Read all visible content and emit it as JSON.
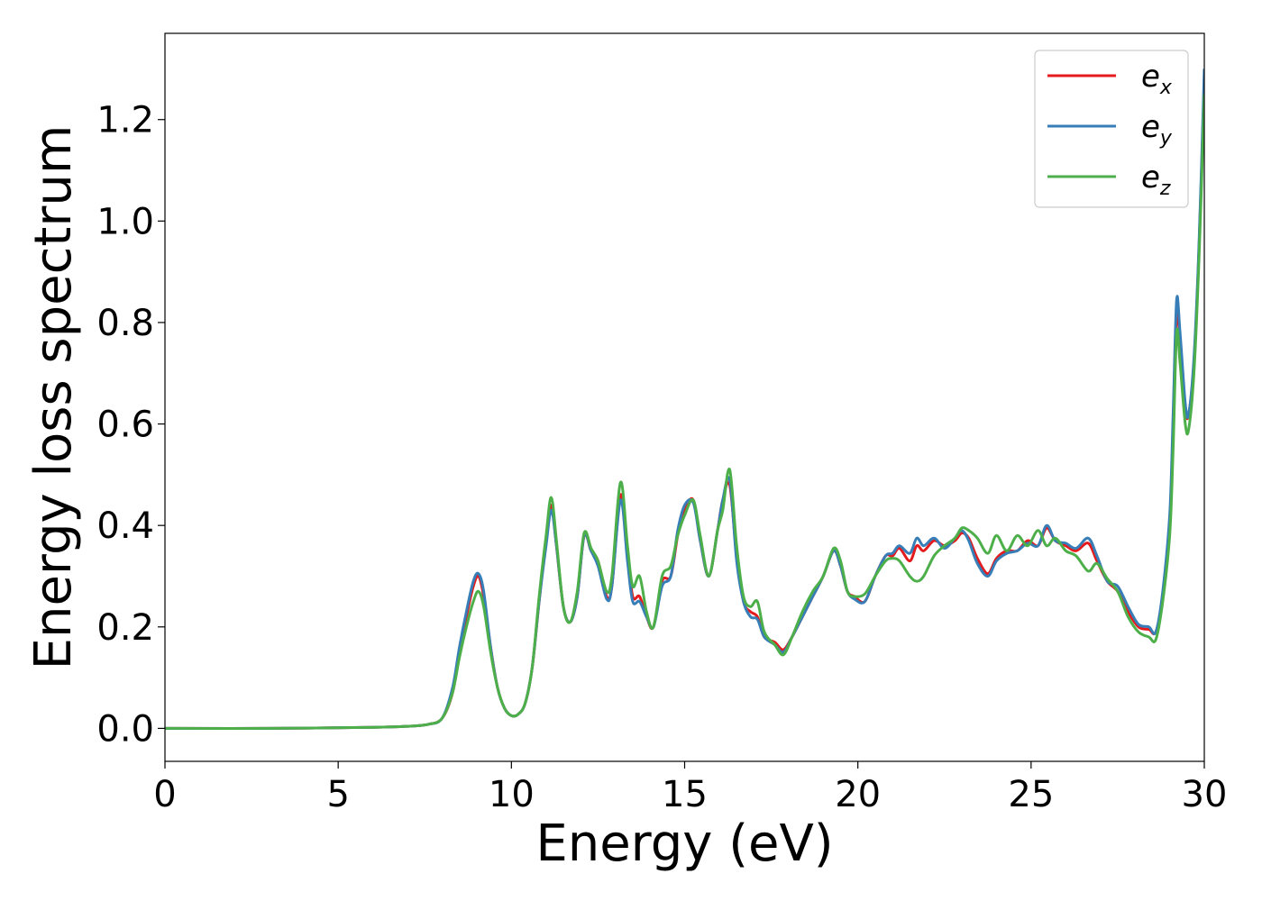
{
  "chart_data": {
    "type": "line",
    "xlabel": "Energy (eV)",
    "ylabel": "Energy loss spectrum",
    "xlim": [
      0,
      30
    ],
    "ylim": [
      -0.065,
      1.37
    ],
    "x_ticks": [
      0,
      5,
      10,
      15,
      20,
      25,
      30
    ],
    "x_tick_labels": [
      "0",
      "5",
      "10",
      "15",
      "20",
      "25",
      "30"
    ],
    "y_ticks": [
      0.0,
      0.2,
      0.4,
      0.6,
      0.8,
      1.0,
      1.2
    ],
    "y_tick_labels": [
      "0.0",
      "0.2",
      "0.4",
      "0.6",
      "0.8",
      "1.0",
      "1.2"
    ],
    "grid": false,
    "legend_position": "top-right",
    "series": [
      {
        "name_base": "e",
        "name_sub": "x",
        "color": "#e41a1c",
        "points": [
          [
            0,
            0
          ],
          [
            3,
            0
          ],
          [
            6,
            0.002
          ],
          [
            7,
            0.004
          ],
          [
            7.6,
            0.008
          ],
          [
            8,
            0.02
          ],
          [
            8.3,
            0.07
          ],
          [
            8.5,
            0.15
          ],
          [
            8.7,
            0.22
          ],
          [
            8.9,
            0.28
          ],
          [
            9.05,
            0.3
          ],
          [
            9.2,
            0.26
          ],
          [
            9.4,
            0.16
          ],
          [
            9.6,
            0.08
          ],
          [
            9.8,
            0.04
          ],
          [
            10,
            0.025
          ],
          [
            10.2,
            0.028
          ],
          [
            10.4,
            0.05
          ],
          [
            10.6,
            0.12
          ],
          [
            10.8,
            0.25
          ],
          [
            11,
            0.37
          ],
          [
            11.15,
            0.44
          ],
          [
            11.3,
            0.36
          ],
          [
            11.5,
            0.24
          ],
          [
            11.7,
            0.21
          ],
          [
            11.9,
            0.26
          ],
          [
            12.1,
            0.38
          ],
          [
            12.3,
            0.35
          ],
          [
            12.5,
            0.33
          ],
          [
            12.75,
            0.26
          ],
          [
            12.9,
            0.28
          ],
          [
            13.15,
            0.46
          ],
          [
            13.35,
            0.35
          ],
          [
            13.5,
            0.26
          ],
          [
            13.7,
            0.26
          ],
          [
            13.9,
            0.22
          ],
          [
            14.1,
            0.2
          ],
          [
            14.35,
            0.29
          ],
          [
            14.6,
            0.3
          ],
          [
            14.8,
            0.38
          ],
          [
            15.0,
            0.43
          ],
          [
            15.25,
            0.45
          ],
          [
            15.45,
            0.37
          ],
          [
            15.7,
            0.3
          ],
          [
            15.95,
            0.39
          ],
          [
            16.1,
            0.45
          ],
          [
            16.3,
            0.48
          ],
          [
            16.5,
            0.34
          ],
          [
            16.7,
            0.25
          ],
          [
            16.9,
            0.23
          ],
          [
            17.1,
            0.22
          ],
          [
            17.3,
            0.18
          ],
          [
            17.6,
            0.17
          ],
          [
            17.85,
            0.155
          ],
          [
            18.1,
            0.18
          ],
          [
            18.4,
            0.22
          ],
          [
            18.7,
            0.26
          ],
          [
            19.0,
            0.3
          ],
          [
            19.3,
            0.35
          ],
          [
            19.5,
            0.32
          ],
          [
            19.7,
            0.27
          ],
          [
            19.9,
            0.26
          ],
          [
            20.2,
            0.25
          ],
          [
            20.5,
            0.3
          ],
          [
            20.8,
            0.34
          ],
          [
            21.0,
            0.34
          ],
          [
            21.2,
            0.355
          ],
          [
            21.5,
            0.33
          ],
          [
            21.7,
            0.36
          ],
          [
            21.9,
            0.35
          ],
          [
            22.2,
            0.37
          ],
          [
            22.5,
            0.36
          ],
          [
            22.8,
            0.37
          ],
          [
            23.0,
            0.385
          ],
          [
            23.2,
            0.375
          ],
          [
            23.45,
            0.335
          ],
          [
            23.75,
            0.305
          ],
          [
            24.0,
            0.335
          ],
          [
            24.3,
            0.35
          ],
          [
            24.6,
            0.35
          ],
          [
            24.9,
            0.37
          ],
          [
            25.2,
            0.36
          ],
          [
            25.45,
            0.395
          ],
          [
            25.7,
            0.37
          ],
          [
            26.0,
            0.36
          ],
          [
            26.3,
            0.35
          ],
          [
            26.65,
            0.365
          ],
          [
            26.9,
            0.33
          ],
          [
            27.2,
            0.29
          ],
          [
            27.5,
            0.27
          ],
          [
            27.8,
            0.23
          ],
          [
            28.1,
            0.2
          ],
          [
            28.4,
            0.195
          ],
          [
            28.6,
            0.19
          ],
          [
            28.8,
            0.26
          ],
          [
            29.0,
            0.4
          ],
          [
            29.1,
            0.6
          ],
          [
            29.2,
            0.82
          ],
          [
            29.3,
            0.76
          ],
          [
            29.45,
            0.63
          ],
          [
            29.55,
            0.62
          ],
          [
            29.7,
            0.72
          ],
          [
            29.85,
            0.95
          ],
          [
            30.0,
            1.28
          ]
        ]
      },
      {
        "name_base": "e",
        "name_sub": "y",
        "color": "#377eb8",
        "points": [
          [
            0,
            0
          ],
          [
            3,
            0
          ],
          [
            6,
            0.002
          ],
          [
            7,
            0.004
          ],
          [
            7.6,
            0.008
          ],
          [
            8,
            0.02
          ],
          [
            8.3,
            0.08
          ],
          [
            8.5,
            0.16
          ],
          [
            8.7,
            0.23
          ],
          [
            8.9,
            0.29
          ],
          [
            9.05,
            0.305
          ],
          [
            9.2,
            0.27
          ],
          [
            9.4,
            0.16
          ],
          [
            9.6,
            0.08
          ],
          [
            9.8,
            0.04
          ],
          [
            10,
            0.025
          ],
          [
            10.2,
            0.028
          ],
          [
            10.4,
            0.05
          ],
          [
            10.6,
            0.12
          ],
          [
            10.8,
            0.25
          ],
          [
            11,
            0.36
          ],
          [
            11.15,
            0.43
          ],
          [
            11.3,
            0.36
          ],
          [
            11.5,
            0.24
          ],
          [
            11.7,
            0.21
          ],
          [
            11.9,
            0.26
          ],
          [
            12.1,
            0.38
          ],
          [
            12.3,
            0.35
          ],
          [
            12.5,
            0.32
          ],
          [
            12.75,
            0.255
          ],
          [
            12.9,
            0.28
          ],
          [
            13.15,
            0.45
          ],
          [
            13.35,
            0.33
          ],
          [
            13.5,
            0.25
          ],
          [
            13.7,
            0.25
          ],
          [
            13.9,
            0.22
          ],
          [
            14.1,
            0.2
          ],
          [
            14.35,
            0.28
          ],
          [
            14.6,
            0.3
          ],
          [
            14.8,
            0.39
          ],
          [
            15.0,
            0.44
          ],
          [
            15.25,
            0.445
          ],
          [
            15.45,
            0.37
          ],
          [
            15.7,
            0.3
          ],
          [
            15.95,
            0.39
          ],
          [
            16.1,
            0.45
          ],
          [
            16.3,
            0.49
          ],
          [
            16.5,
            0.33
          ],
          [
            16.7,
            0.25
          ],
          [
            16.9,
            0.22
          ],
          [
            17.1,
            0.215
          ],
          [
            17.3,
            0.18
          ],
          [
            17.6,
            0.165
          ],
          [
            17.85,
            0.15
          ],
          [
            18.1,
            0.18
          ],
          [
            18.4,
            0.22
          ],
          [
            18.7,
            0.26
          ],
          [
            19.0,
            0.3
          ],
          [
            19.3,
            0.35
          ],
          [
            19.5,
            0.32
          ],
          [
            19.7,
            0.27
          ],
          [
            19.9,
            0.255
          ],
          [
            20.2,
            0.25
          ],
          [
            20.5,
            0.3
          ],
          [
            20.8,
            0.34
          ],
          [
            21.0,
            0.345
          ],
          [
            21.2,
            0.36
          ],
          [
            21.5,
            0.345
          ],
          [
            21.7,
            0.375
          ],
          [
            21.9,
            0.36
          ],
          [
            22.2,
            0.375
          ],
          [
            22.5,
            0.355
          ],
          [
            22.8,
            0.375
          ],
          [
            23.0,
            0.39
          ],
          [
            23.2,
            0.37
          ],
          [
            23.45,
            0.325
          ],
          [
            23.75,
            0.3
          ],
          [
            24.0,
            0.33
          ],
          [
            24.3,
            0.345
          ],
          [
            24.6,
            0.35
          ],
          [
            24.9,
            0.365
          ],
          [
            25.2,
            0.36
          ],
          [
            25.45,
            0.4
          ],
          [
            25.7,
            0.37
          ],
          [
            26.0,
            0.365
          ],
          [
            26.3,
            0.355
          ],
          [
            26.65,
            0.375
          ],
          [
            26.9,
            0.34
          ],
          [
            27.2,
            0.29
          ],
          [
            27.5,
            0.28
          ],
          [
            27.8,
            0.24
          ],
          [
            28.1,
            0.205
          ],
          [
            28.4,
            0.2
          ],
          [
            28.6,
            0.19
          ],
          [
            28.8,
            0.27
          ],
          [
            29.0,
            0.42
          ],
          [
            29.1,
            0.62
          ],
          [
            29.2,
            0.845
          ],
          [
            29.3,
            0.78
          ],
          [
            29.45,
            0.64
          ],
          [
            29.55,
            0.62
          ],
          [
            29.7,
            0.73
          ],
          [
            29.85,
            0.96
          ],
          [
            30.0,
            1.3
          ]
        ]
      },
      {
        "name_base": "e",
        "name_sub": "z",
        "color": "#4daf4a",
        "points": [
          [
            0,
            0
          ],
          [
            3,
            0
          ],
          [
            6,
            0.002
          ],
          [
            7,
            0.004
          ],
          [
            7.6,
            0.008
          ],
          [
            8,
            0.02
          ],
          [
            8.3,
            0.07
          ],
          [
            8.5,
            0.14
          ],
          [
            8.7,
            0.2
          ],
          [
            8.9,
            0.25
          ],
          [
            9.05,
            0.27
          ],
          [
            9.2,
            0.24
          ],
          [
            9.4,
            0.15
          ],
          [
            9.6,
            0.08
          ],
          [
            9.8,
            0.04
          ],
          [
            10,
            0.025
          ],
          [
            10.2,
            0.028
          ],
          [
            10.4,
            0.05
          ],
          [
            10.6,
            0.12
          ],
          [
            10.8,
            0.26
          ],
          [
            11,
            0.38
          ],
          [
            11.15,
            0.455
          ],
          [
            11.3,
            0.37
          ],
          [
            11.5,
            0.24
          ],
          [
            11.7,
            0.21
          ],
          [
            11.9,
            0.27
          ],
          [
            12.1,
            0.385
          ],
          [
            12.3,
            0.355
          ],
          [
            12.5,
            0.33
          ],
          [
            12.75,
            0.27
          ],
          [
            12.9,
            0.3
          ],
          [
            13.15,
            0.485
          ],
          [
            13.35,
            0.36
          ],
          [
            13.5,
            0.28
          ],
          [
            13.7,
            0.3
          ],
          [
            13.9,
            0.23
          ],
          [
            14.1,
            0.2
          ],
          [
            14.35,
            0.3
          ],
          [
            14.6,
            0.32
          ],
          [
            14.8,
            0.38
          ],
          [
            15.0,
            0.42
          ],
          [
            15.25,
            0.45
          ],
          [
            15.45,
            0.38
          ],
          [
            15.7,
            0.3
          ],
          [
            15.95,
            0.39
          ],
          [
            16.1,
            0.43
          ],
          [
            16.3,
            0.51
          ],
          [
            16.5,
            0.36
          ],
          [
            16.7,
            0.26
          ],
          [
            16.9,
            0.24
          ],
          [
            17.1,
            0.25
          ],
          [
            17.3,
            0.19
          ],
          [
            17.6,
            0.165
          ],
          [
            17.85,
            0.145
          ],
          [
            18.1,
            0.18
          ],
          [
            18.4,
            0.23
          ],
          [
            18.7,
            0.27
          ],
          [
            19.0,
            0.3
          ],
          [
            19.3,
            0.355
          ],
          [
            19.5,
            0.33
          ],
          [
            19.7,
            0.27
          ],
          [
            19.9,
            0.26
          ],
          [
            20.2,
            0.265
          ],
          [
            20.5,
            0.3
          ],
          [
            20.8,
            0.33
          ],
          [
            21.0,
            0.335
          ],
          [
            21.2,
            0.33
          ],
          [
            21.5,
            0.3
          ],
          [
            21.7,
            0.29
          ],
          [
            21.9,
            0.3
          ],
          [
            22.2,
            0.34
          ],
          [
            22.5,
            0.36
          ],
          [
            22.8,
            0.375
          ],
          [
            23.0,
            0.395
          ],
          [
            23.2,
            0.39
          ],
          [
            23.45,
            0.375
          ],
          [
            23.75,
            0.345
          ],
          [
            24.0,
            0.38
          ],
          [
            24.3,
            0.35
          ],
          [
            24.6,
            0.38
          ],
          [
            24.9,
            0.36
          ],
          [
            25.2,
            0.39
          ],
          [
            25.45,
            0.36
          ],
          [
            25.7,
            0.375
          ],
          [
            26.0,
            0.35
          ],
          [
            26.3,
            0.34
          ],
          [
            26.65,
            0.31
          ],
          [
            26.9,
            0.325
          ],
          [
            27.2,
            0.295
          ],
          [
            27.5,
            0.27
          ],
          [
            27.8,
            0.22
          ],
          [
            28.1,
            0.19
          ],
          [
            28.4,
            0.18
          ],
          [
            28.6,
            0.175
          ],
          [
            28.8,
            0.25
          ],
          [
            29.0,
            0.38
          ],
          [
            29.1,
            0.55
          ],
          [
            29.2,
            0.78
          ],
          [
            29.3,
            0.72
          ],
          [
            29.45,
            0.6
          ],
          [
            29.55,
            0.59
          ],
          [
            29.7,
            0.7
          ],
          [
            29.85,
            0.93
          ],
          [
            30.0,
            1.25
          ]
        ]
      }
    ]
  }
}
